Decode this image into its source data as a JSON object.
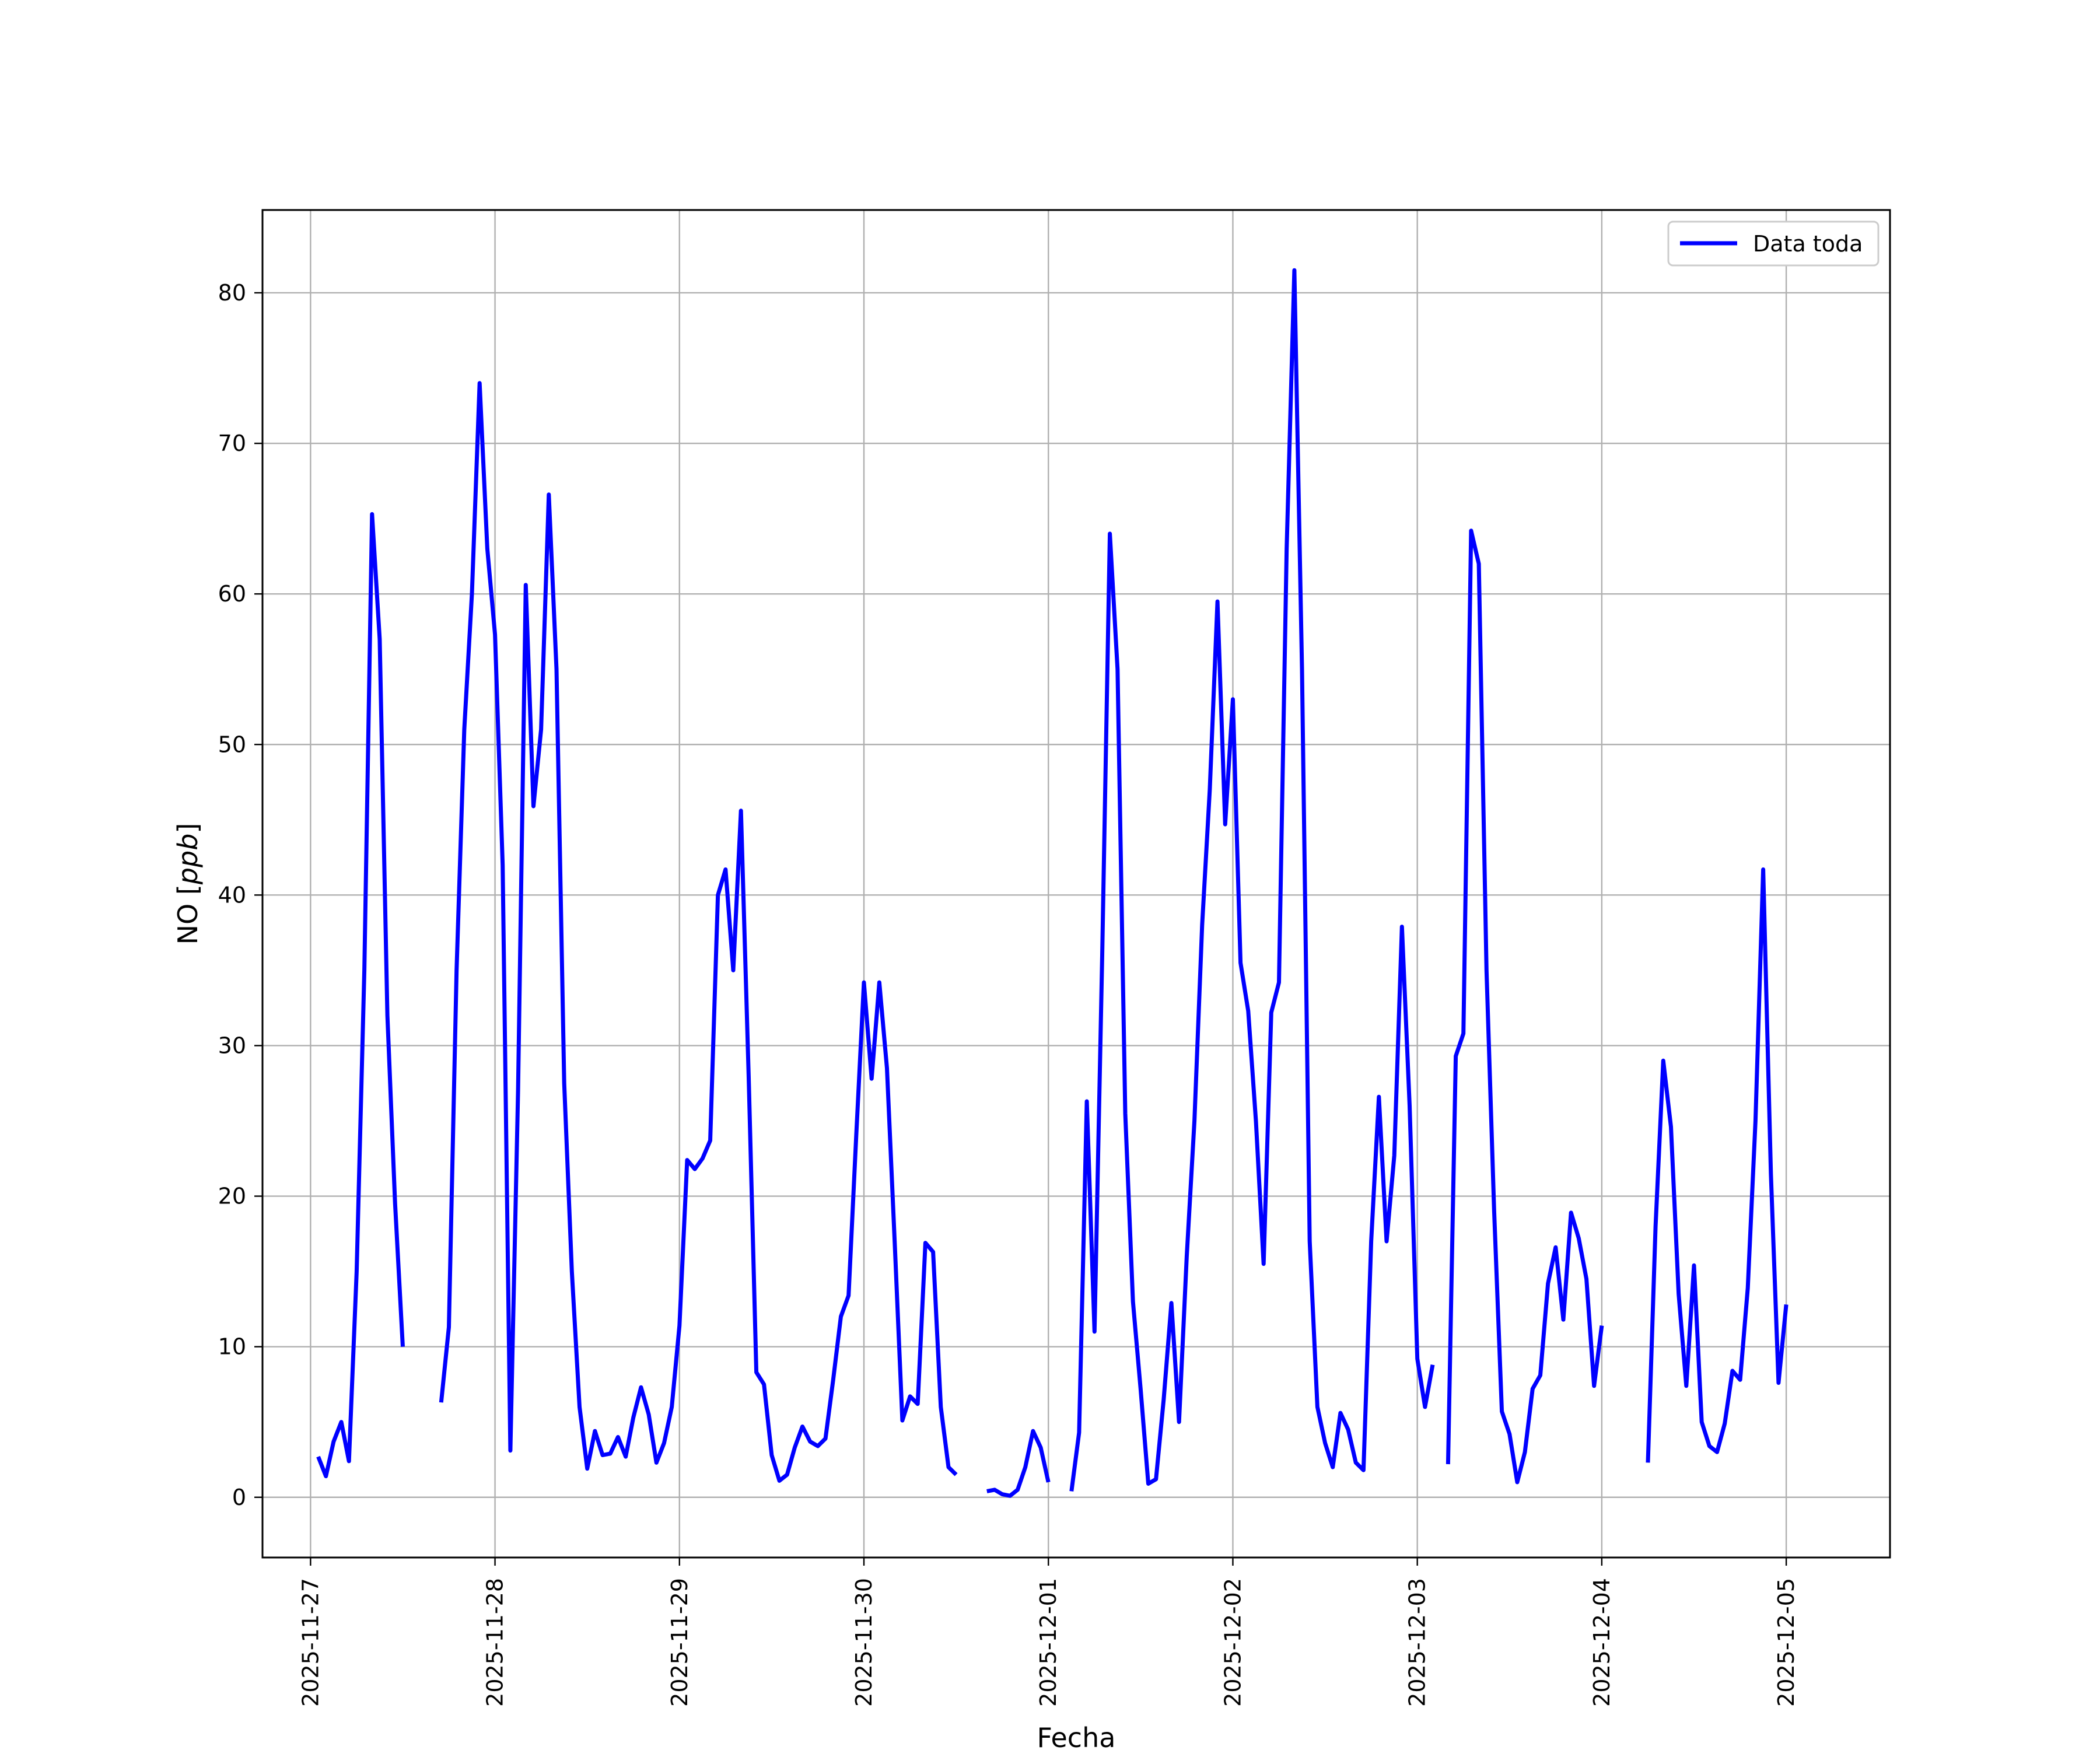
{
  "chart_data": {
    "type": "line",
    "xlabel": "Fecha",
    "ylabel_prefix": "NO [",
    "ylabel_unit": "ppb",
    "ylabel_suffix": "]",
    "x_domain": [
      "2025-11-26T17:45:00",
      "2025-12-05T13:30:00"
    ],
    "ylim": [
      -4,
      85.5
    ],
    "x_ticks": [
      {
        "t": "2025-11-27T00:00:00",
        "label": "2025-11-27"
      },
      {
        "t": "2025-11-28T00:00:00",
        "label": "2025-11-28"
      },
      {
        "t": "2025-11-29T00:00:00",
        "label": "2025-11-29"
      },
      {
        "t": "2025-11-30T00:00:00",
        "label": "2025-11-30"
      },
      {
        "t": "2025-12-01T00:00:00",
        "label": "2025-12-01"
      },
      {
        "t": "2025-12-02T00:00:00",
        "label": "2025-12-02"
      },
      {
        "t": "2025-12-03T00:00:00",
        "label": "2025-12-03"
      },
      {
        "t": "2025-12-04T00:00:00",
        "label": "2025-12-04"
      },
      {
        "t": "2025-12-05T00:00:00",
        "label": "2025-12-05"
      }
    ],
    "y_ticks": [
      0,
      10,
      20,
      30,
      40,
      50,
      60,
      70,
      80
    ],
    "grid": true,
    "legend_position": "top-right",
    "series": [
      {
        "name": "Data toda",
        "color": "#0000ff",
        "segments": [
          [
            [
              "2025-11-27T01:00:00",
              2.7
            ],
            [
              "2025-11-27T02:00:00",
              1.4
            ],
            [
              "2025-11-27T03:00:00",
              3.7
            ],
            [
              "2025-11-27T04:00:00",
              5.0
            ],
            [
              "2025-11-27T05:00:00",
              2.4
            ],
            [
              "2025-11-27T06:00:00",
              15.0
            ],
            [
              "2025-11-27T07:00:00",
              35.0
            ],
            [
              "2025-11-27T08:00:00",
              65.3
            ],
            [
              "2025-11-27T09:00:00",
              57.0
            ],
            [
              "2025-11-27T10:00:00",
              32.0
            ],
            [
              "2025-11-27T11:00:00",
              19.5
            ],
            [
              "2025-11-27T12:00:00",
              10.0
            ]
          ],
          [
            [
              "2025-11-27T17:00:00",
              6.3
            ],
            [
              "2025-11-27T18:00:00",
              11.3
            ],
            [
              "2025-11-27T19:00:00",
              35.0
            ],
            [
              "2025-11-27T20:00:00",
              51.0
            ],
            [
              "2025-11-27T21:00:00",
              60.0
            ],
            [
              "2025-11-27T22:00:00",
              74.0
            ],
            [
              "2025-11-27T23:00:00",
              63.0
            ],
            [
              "2025-11-28T00:00:00",
              57.3
            ],
            [
              "2025-11-28T01:00:00",
              42.0
            ],
            [
              "2025-11-28T02:00:00",
              3.1
            ],
            [
              "2025-11-28T03:00:00",
              27.0
            ],
            [
              "2025-11-28T04:00:00",
              60.6
            ],
            [
              "2025-11-28T05:00:00",
              45.9
            ],
            [
              "2025-11-28T06:00:00",
              51.0
            ],
            [
              "2025-11-28T07:00:00",
              66.6
            ],
            [
              "2025-11-28T08:00:00",
              55.0
            ],
            [
              "2025-11-28T09:00:00",
              27.5
            ],
            [
              "2025-11-28T10:00:00",
              15.0
            ],
            [
              "2025-11-28T11:00:00",
              6.0
            ],
            [
              "2025-11-28T12:00:00",
              1.9
            ],
            [
              "2025-11-28T13:00:00",
              4.4
            ],
            [
              "2025-11-28T14:00:00",
              2.8
            ],
            [
              "2025-11-28T15:00:00",
              2.9
            ],
            [
              "2025-11-28T16:00:00",
              4.0
            ],
            [
              "2025-11-28T17:00:00",
              2.7
            ],
            [
              "2025-11-28T18:00:00",
              5.3
            ],
            [
              "2025-11-28T19:00:00",
              7.3
            ],
            [
              "2025-11-28T20:00:00",
              5.5
            ],
            [
              "2025-11-28T21:00:00",
              2.3
            ],
            [
              "2025-11-28T22:00:00",
              3.6
            ],
            [
              "2025-11-28T23:00:00",
              6.0
            ],
            [
              "2025-11-29T00:00:00",
              11.4
            ],
            [
              "2025-11-29T01:00:00",
              22.4
            ],
            [
              "2025-11-29T02:00:00",
              21.8
            ],
            [
              "2025-11-29T03:00:00",
              22.5
            ],
            [
              "2025-11-29T04:00:00",
              23.7
            ],
            [
              "2025-11-29T05:00:00",
              40.0
            ],
            [
              "2025-11-29T06:00:00",
              41.7
            ],
            [
              "2025-11-29T07:00:00",
              35.0
            ],
            [
              "2025-11-29T08:00:00",
              45.6
            ],
            [
              "2025-11-29T09:00:00",
              28.0
            ],
            [
              "2025-11-29T10:00:00",
              8.3
            ],
            [
              "2025-11-29T11:00:00",
              7.5
            ],
            [
              "2025-11-29T12:00:00",
              2.8
            ],
            [
              "2025-11-29T13:00:00",
              1.1
            ],
            [
              "2025-11-29T14:00:00",
              1.5
            ],
            [
              "2025-11-29T15:00:00",
              3.3
            ],
            [
              "2025-11-29T16:00:00",
              4.7
            ],
            [
              "2025-11-29T17:00:00",
              3.7
            ],
            [
              "2025-11-29T18:00:00",
              3.4
            ],
            [
              "2025-11-29T19:00:00",
              3.9
            ],
            [
              "2025-11-29T20:00:00",
              7.8
            ],
            [
              "2025-11-29T21:00:00",
              12.0
            ],
            [
              "2025-11-29T22:00:00",
              13.4
            ],
            [
              "2025-11-29T23:00:00",
              24.0
            ],
            [
              "2025-11-30T00:00:00",
              34.2
            ],
            [
              "2025-11-30T01:00:00",
              27.8
            ],
            [
              "2025-11-30T02:00:00",
              34.2
            ],
            [
              "2025-11-30T03:00:00",
              28.5
            ],
            [
              "2025-11-30T04:00:00",
              17.0
            ],
            [
              "2025-11-30T05:00:00",
              5.1
            ],
            [
              "2025-11-30T06:00:00",
              6.7
            ],
            [
              "2025-11-30T07:00:00",
              6.2
            ],
            [
              "2025-11-30T08:00:00",
              16.9
            ],
            [
              "2025-11-30T09:00:00",
              16.3
            ],
            [
              "2025-11-30T10:00:00",
              6.0
            ],
            [
              "2025-11-30T11:00:00",
              2.0
            ],
            [
              "2025-11-30T12:00:00",
              1.5
            ]
          ],
          [
            [
              "2025-11-30T16:00:00",
              0.4
            ],
            [
              "2025-11-30T17:00:00",
              0.5
            ],
            [
              "2025-11-30T18:00:00",
              0.2
            ],
            [
              "2025-11-30T19:00:00",
              0.1
            ],
            [
              "2025-11-30T20:00:00",
              0.5
            ],
            [
              "2025-11-30T21:00:00",
              2.0
            ],
            [
              "2025-11-30T22:00:00",
              4.4
            ],
            [
              "2025-11-30T23:00:00",
              3.3
            ],
            [
              "2025-12-01T00:00:00",
              1.0
            ]
          ],
          [
            [
              "2025-12-01T03:00:00",
              0.4
            ],
            [
              "2025-12-01T04:00:00",
              4.3
            ],
            [
              "2025-12-01T05:00:00",
              26.3
            ],
            [
              "2025-12-01T06:00:00",
              11.0
            ],
            [
              "2025-12-01T07:00:00",
              36.0
            ],
            [
              "2025-12-01T08:00:00",
              64.0
            ],
            [
              "2025-12-01T09:00:00",
              55.0
            ],
            [
              "2025-12-01T10:00:00",
              25.5
            ],
            [
              "2025-12-01T11:00:00",
              13.0
            ],
            [
              "2025-12-01T12:00:00",
              7.2
            ],
            [
              "2025-12-01T13:00:00",
              0.9
            ],
            [
              "2025-12-01T14:00:00",
              1.2
            ],
            [
              "2025-12-01T15:00:00",
              6.5
            ],
            [
              "2025-12-01T16:00:00",
              12.9
            ],
            [
              "2025-12-01T17:00:00",
              5.0
            ],
            [
              "2025-12-01T18:00:00",
              16.0
            ],
            [
              "2025-12-01T19:00:00",
              25.0
            ],
            [
              "2025-12-01T20:00:00",
              38.0
            ],
            [
              "2025-12-01T21:00:00",
              47.0
            ],
            [
              "2025-12-01T22:00:00",
              59.5
            ],
            [
              "2025-12-01T23:00:00",
              44.7
            ],
            [
              "2025-12-02T00:00:00",
              53.0
            ],
            [
              "2025-12-02T01:00:00",
              35.5
            ],
            [
              "2025-12-02T02:00:00",
              32.3
            ],
            [
              "2025-12-02T03:00:00",
              25.0
            ],
            [
              "2025-12-02T04:00:00",
              15.5
            ],
            [
              "2025-12-02T05:00:00",
              32.2
            ],
            [
              "2025-12-02T06:00:00",
              34.2
            ],
            [
              "2025-12-02T07:00:00",
              63.0
            ],
            [
              "2025-12-02T08:00:00",
              81.5
            ],
            [
              "2025-12-02T09:00:00",
              55.0
            ],
            [
              "2025-12-02T10:00:00",
              17.0
            ],
            [
              "2025-12-02T11:00:00",
              6.0
            ],
            [
              "2025-12-02T12:00:00",
              3.6
            ],
            [
              "2025-12-02T13:00:00",
              2.0
            ],
            [
              "2025-12-02T14:00:00",
              5.6
            ],
            [
              "2025-12-02T15:00:00",
              4.5
            ],
            [
              "2025-12-02T16:00:00",
              2.3
            ],
            [
              "2025-12-02T17:00:00",
              1.8
            ],
            [
              "2025-12-02T18:00:00",
              17.0
            ],
            [
              "2025-12-02T19:00:00",
              26.6
            ],
            [
              "2025-12-02T20:00:00",
              17.0
            ],
            [
              "2025-12-02T21:00:00",
              22.7
            ],
            [
              "2025-12-02T22:00:00",
              37.9
            ],
            [
              "2025-12-02T23:00:00",
              26.0
            ],
            [
              "2025-12-03T00:00:00",
              9.2
            ],
            [
              "2025-12-03T01:00:00",
              6.0
            ],
            [
              "2025-12-03T02:00:00",
              8.8
            ]
          ],
          [
            [
              "2025-12-03T04:00:00",
              2.2
            ],
            [
              "2025-12-03T05:00:00",
              29.3
            ],
            [
              "2025-12-03T06:00:00",
              30.8
            ],
            [
              "2025-12-03T07:00:00",
              64.2
            ],
            [
              "2025-12-03T08:00:00",
              62.0
            ],
            [
              "2025-12-03T09:00:00",
              35.0
            ],
            [
              "2025-12-03T10:00:00",
              19.0
            ],
            [
              "2025-12-03T11:00:00",
              5.7
            ],
            [
              "2025-12-03T12:00:00",
              4.2
            ],
            [
              "2025-12-03T13:00:00",
              1.0
            ],
            [
              "2025-12-03T14:00:00",
              3.0
            ],
            [
              "2025-12-03T15:00:00",
              7.2
            ],
            [
              "2025-12-03T16:00:00",
              8.1
            ],
            [
              "2025-12-03T17:00:00",
              14.2
            ],
            [
              "2025-12-03T18:00:00",
              16.6
            ],
            [
              "2025-12-03T19:00:00",
              11.8
            ],
            [
              "2025-12-03T20:00:00",
              18.9
            ],
            [
              "2025-12-03T21:00:00",
              17.2
            ],
            [
              "2025-12-03T22:00:00",
              14.5
            ],
            [
              "2025-12-03T23:00:00",
              7.4
            ],
            [
              "2025-12-04T00:00:00",
              11.4
            ]
          ],
          [
            [
              "2025-12-04T06:00:00",
              2.3
            ],
            [
              "2025-12-04T07:00:00",
              18.0
            ],
            [
              "2025-12-04T08:00:00",
              29.0
            ],
            [
              "2025-12-04T09:00:00",
              24.6
            ],
            [
              "2025-12-04T10:00:00",
              13.5
            ],
            [
              "2025-12-04T11:00:00",
              7.4
            ],
            [
              "2025-12-04T12:00:00",
              15.4
            ],
            [
              "2025-12-04T13:00:00",
              5.0
            ],
            [
              "2025-12-04T14:00:00",
              3.4
            ],
            [
              "2025-12-04T15:00:00",
              3.0
            ],
            [
              "2025-12-04T16:00:00",
              4.9
            ],
            [
              "2025-12-04T17:00:00",
              8.4
            ],
            [
              "2025-12-04T18:00:00",
              7.8
            ],
            [
              "2025-12-04T19:00:00",
              13.9
            ],
            [
              "2025-12-04T20:00:00",
              25.0
            ],
            [
              "2025-12-04T21:00:00",
              41.7
            ],
            [
              "2025-12-04T22:00:00",
              21.5
            ],
            [
              "2025-12-04T23:00:00",
              7.6
            ],
            [
              "2025-12-05T00:00:00",
              12.8
            ]
          ]
        ]
      }
    ]
  }
}
